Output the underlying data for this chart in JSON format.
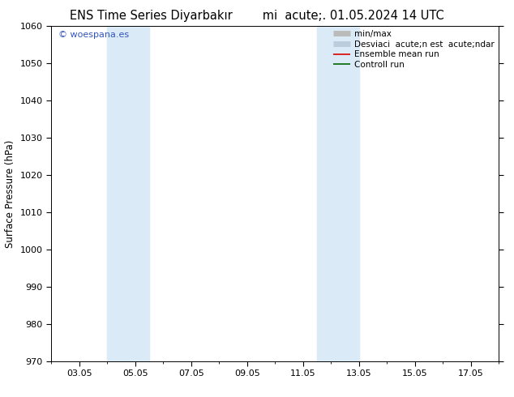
{
  "title": "ENS Time Series Diyarbakır        mi  acute;. 01.05.2024 14 UTC",
  "ylabel": "Surface Pressure (hPa)",
  "ylim": [
    970,
    1060
  ],
  "yticks": [
    970,
    980,
    990,
    1000,
    1010,
    1020,
    1030,
    1040,
    1050,
    1060
  ],
  "xtick_labels": [
    "03.05",
    "05.05",
    "07.05",
    "09.05",
    "11.05",
    "13.05",
    "15.05",
    "17.05"
  ],
  "xtick_positions": [
    3,
    5,
    7,
    9,
    11,
    13,
    15,
    17
  ],
  "xlim": [
    2,
    18
  ],
  "shaded_bands": [
    {
      "xmin": 4.0,
      "xmax": 5.5,
      "color": "#daeaf7"
    },
    {
      "xmin": 11.5,
      "xmax": 13.0,
      "color": "#daeaf7"
    }
  ],
  "watermark_text": "© woespana.es",
  "watermark_color": "#3355bb",
  "legend_entries": [
    {
      "label": "min/max",
      "color": "#bbbbbb",
      "lw": 5
    },
    {
      "label": "Desviaci  acute;n est  acute;ndar",
      "color": "#bbccdd",
      "lw": 5
    },
    {
      "label": "Ensemble mean run",
      "color": "#dd0000",
      "lw": 1.2
    },
    {
      "label": "Controll run",
      "color": "#006600",
      "lw": 1.2
    }
  ],
  "bg_color": "#ffffff",
  "title_fontsize": 10.5,
  "label_fontsize": 8.5,
  "tick_fontsize": 8,
  "legend_fontsize": 7.5
}
